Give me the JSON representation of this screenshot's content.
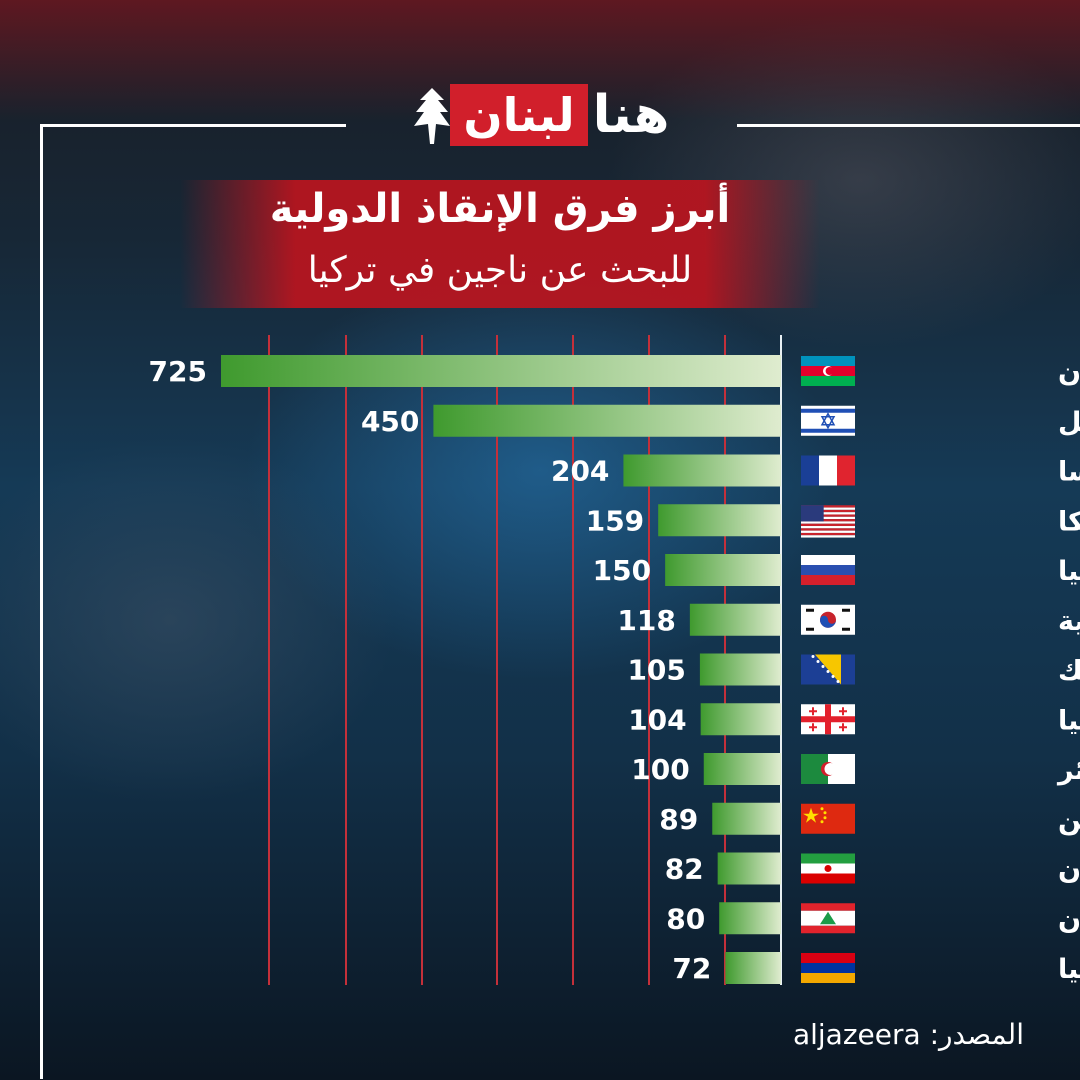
{
  "brand": {
    "logo_part_red": "لبنان",
    "logo_part_white": "هنا"
  },
  "title": {
    "line1": "أبرز فرق الإنقاذ الدولية",
    "line2": "للبحث عن ناجين في تركيا"
  },
  "source": {
    "label": "المصدر:",
    "value": "aljazeera"
  },
  "colors": {
    "bar_dark": "#3f9a2e",
    "bar_light": "#dfeccf",
    "grid": "#c4303a",
    "banner": "#c81c28"
  },
  "chart_data": {
    "type": "bar",
    "orientation": "horizontal",
    "categories": [
      "أذربيجان",
      "إسرائيل",
      "فرنسا",
      "أمريكا",
      "روسيا",
      "كوريا الجنوبية",
      "البوسنة والهرسك",
      "جورجيا",
      "الجزائر",
      "الصين",
      "إيران",
      "لبنان",
      "أرمينيا"
    ],
    "flags": [
      "azerbaijan-flag",
      "israel-flag",
      "france-flag",
      "usa-flag",
      "russia-flag",
      "south-korea-flag",
      "bosnia-flag",
      "georgia-flag",
      "algeria-flag",
      "china-flag",
      "iran-flag",
      "lebanon-flag",
      "armenia-flag"
    ],
    "values": [
      725,
      450,
      204,
      159,
      150,
      118,
      105,
      104,
      100,
      89,
      82,
      80,
      72
    ],
    "title": "أبرز فرق الإنقاذ الدولية للبحث عن ناجين في تركيا",
    "grid": true,
    "xlim": [
      0,
      725
    ]
  }
}
